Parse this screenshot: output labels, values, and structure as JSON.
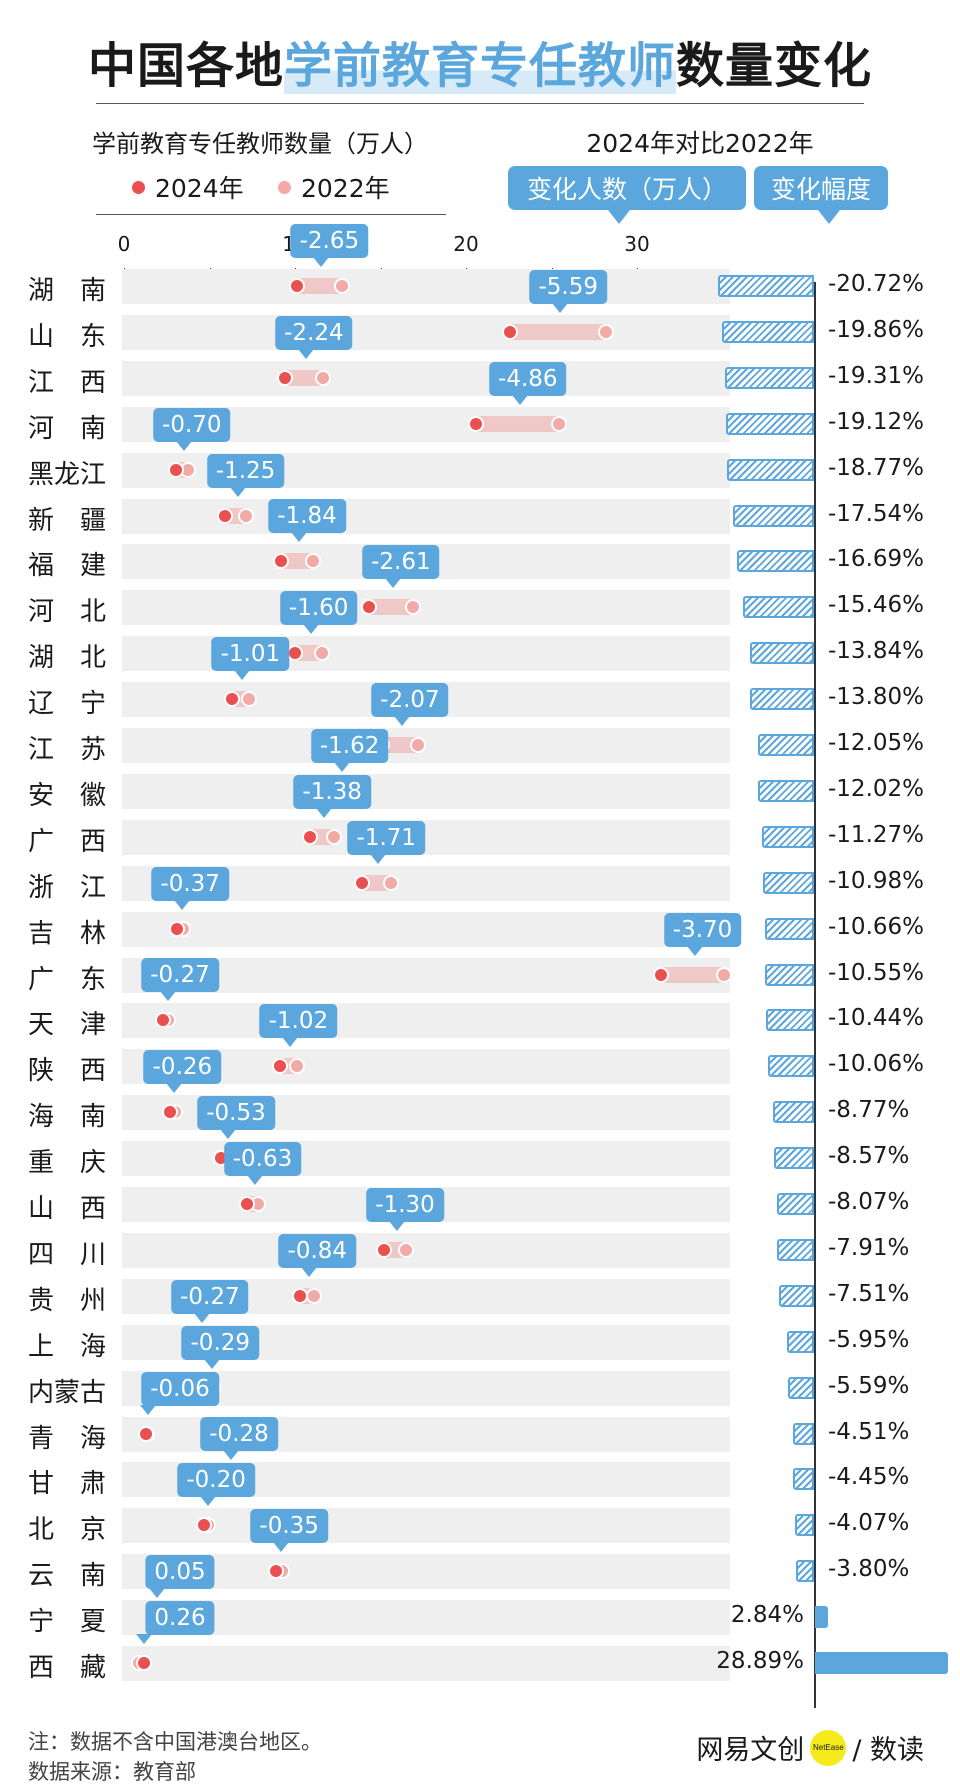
{
  "title": {
    "part1": "中国各地",
    "highlight": "学前教育专任教师",
    "part2": "数量变化"
  },
  "legend": {
    "title": "学前教育专任教师数量（万人）",
    "item_2024": "2024年",
    "item_2022": "2022年"
  },
  "compare_title": "2024年对比2022年",
  "header_change_count": "变化人数（万人）",
  "header_change_rate": "变化幅度",
  "footer": {
    "note": "注：数据不含中国港澳台地区。",
    "source": "数据来源：教育部",
    "brand": "网易文创",
    "brand_logo": "NetEase",
    "brand_sub": "/ 数读"
  },
  "colors": {
    "v2024": "#e9504f",
    "v2022": "#f2aaa6",
    "accent": "#5ba7dd",
    "pct_bar_fill": "#5ba7dd"
  },
  "chart_data": {
    "type": "dumbbell",
    "xticks": [
      "0",
      "10",
      "20",
      "30"
    ],
    "xlim": [
      0,
      36
    ],
    "series": [
      {
        "name": "2024年"
      },
      {
        "name": "2022年"
      }
    ],
    "rows": [
      {
        "province": "湖　南",
        "v2024": 10.1,
        "v2022": 12.75,
        "change": "-2.65",
        "pct": "-20.72%",
        "pct_value": -20.72
      },
      {
        "province": "山　东",
        "v2024": 22.6,
        "v2022": 28.19,
        "change": "-5.59",
        "pct": "-19.86%",
        "pct_value": -19.86
      },
      {
        "province": "江　西",
        "v2024": 9.4,
        "v2022": 11.64,
        "change": "-2.24",
        "pct": "-19.31%",
        "pct_value": -19.31
      },
      {
        "province": "河　南",
        "v2024": 20.6,
        "v2022": 25.46,
        "change": "-4.86",
        "pct": "-19.12%",
        "pct_value": -19.12
      },
      {
        "province": "黑龙江",
        "v2024": 3.03,
        "v2022": 3.73,
        "change": "-0.70",
        "pct": "-18.77%",
        "pct_value": -18.77
      },
      {
        "province": "新　疆",
        "v2024": 5.9,
        "v2022": 7.15,
        "change": "-1.25",
        "pct": "-17.54%",
        "pct_value": -17.54
      },
      {
        "province": "福　建",
        "v2024": 9.2,
        "v2022": 11.04,
        "change": "-1.84",
        "pct": "-16.69%",
        "pct_value": -16.69
      },
      {
        "province": "河　北",
        "v2024": 14.3,
        "v2022": 16.91,
        "change": "-2.61",
        "pct": "-15.46%",
        "pct_value": -15.46
      },
      {
        "province": "湖　北",
        "v2024": 10.0,
        "v2022": 11.6,
        "change": "-1.60",
        "pct": "-13.84%",
        "pct_value": -13.84
      },
      {
        "province": "辽　宁",
        "v2024": 6.3,
        "v2022": 7.31,
        "change": "-1.01",
        "pct": "-13.80%",
        "pct_value": -13.8
      },
      {
        "province": "江　苏",
        "v2024": 15.1,
        "v2022": 17.17,
        "change": "-2.07",
        "pct": "-12.05%",
        "pct_value": -12.05
      },
      {
        "province": "安　徽",
        "v2024": 11.8,
        "v2022": 13.42,
        "change": "-1.62",
        "pct": "-12.02%",
        "pct_value": -12.02
      },
      {
        "province": "广　西",
        "v2024": 10.9,
        "v2022": 12.28,
        "change": "-1.38",
        "pct": "-11.27%",
        "pct_value": -11.27
      },
      {
        "province": "浙　江",
        "v2024": 13.9,
        "v2022": 15.61,
        "change": "-1.71",
        "pct": "-10.98%",
        "pct_value": -10.98
      },
      {
        "province": "吉　林",
        "v2024": 3.1,
        "v2022": 3.47,
        "change": "-0.37",
        "pct": "-10.66%",
        "pct_value": -10.66
      },
      {
        "province": "广　东",
        "v2024": 31.4,
        "v2022": 35.1,
        "change": "-3.70",
        "pct": "-10.55%",
        "pct_value": -10.55
      },
      {
        "province": "天　津",
        "v2024": 2.3,
        "v2022": 2.57,
        "change": "-0.27",
        "pct": "-10.44%",
        "pct_value": -10.44
      },
      {
        "province": "陕　西",
        "v2024": 9.1,
        "v2022": 10.12,
        "change": "-1.02",
        "pct": "-10.06%",
        "pct_value": -10.06
      },
      {
        "province": "海　南",
        "v2024": 2.7,
        "v2022": 2.96,
        "change": "-0.26",
        "pct": "-8.77%",
        "pct_value": -8.77
      },
      {
        "province": "重　庆",
        "v2024": 5.7,
        "v2022": 6.23,
        "change": "-0.53",
        "pct": "-8.57%",
        "pct_value": -8.57
      },
      {
        "province": "山　西",
        "v2024": 7.2,
        "v2022": 7.83,
        "change": "-0.63",
        "pct": "-8.07%",
        "pct_value": -8.07
      },
      {
        "province": "四　川",
        "v2024": 15.2,
        "v2022": 16.5,
        "change": "-1.30",
        "pct": "-7.91%",
        "pct_value": -7.91
      },
      {
        "province": "贵　州",
        "v2024": 10.3,
        "v2022": 11.14,
        "change": "-0.84",
        "pct": "-7.51%",
        "pct_value": -7.51
      },
      {
        "province": "上　海",
        "v2024": 4.3,
        "v2022": 4.57,
        "change": "-0.27",
        "pct": "-5.95%",
        "pct_value": -5.95
      },
      {
        "province": "内蒙古",
        "v2024": 4.9,
        "v2022": 5.19,
        "change": "-0.29",
        "pct": "-5.59%",
        "pct_value": -5.59
      },
      {
        "province": "青　海",
        "v2024": 1.27,
        "v2022": 1.33,
        "change": "-0.06",
        "pct": "-4.51%",
        "pct_value": -4.51
      },
      {
        "province": "甘　肃",
        "v2024": 6.0,
        "v2022": 6.28,
        "change": "-0.28",
        "pct": "-4.45%",
        "pct_value": -4.45
      },
      {
        "province": "北　京",
        "v2024": 4.7,
        "v2022": 4.9,
        "change": "-0.20",
        "pct": "-4.07%",
        "pct_value": -4.07
      },
      {
        "province": "云　南",
        "v2024": 8.9,
        "v2022": 9.25,
        "change": "-0.35",
        "pct": "-3.80%",
        "pct_value": -3.8
      },
      {
        "province": "宁　夏",
        "v2024": 1.81,
        "v2022": 1.76,
        "change": "0.05",
        "pct": "2.84%",
        "pct_value": 2.84
      },
      {
        "province": "西　藏",
        "v2024": 1.16,
        "v2022": 0.9,
        "change": "0.26",
        "pct": "28.89%",
        "pct_value": 28.89
      }
    ]
  }
}
